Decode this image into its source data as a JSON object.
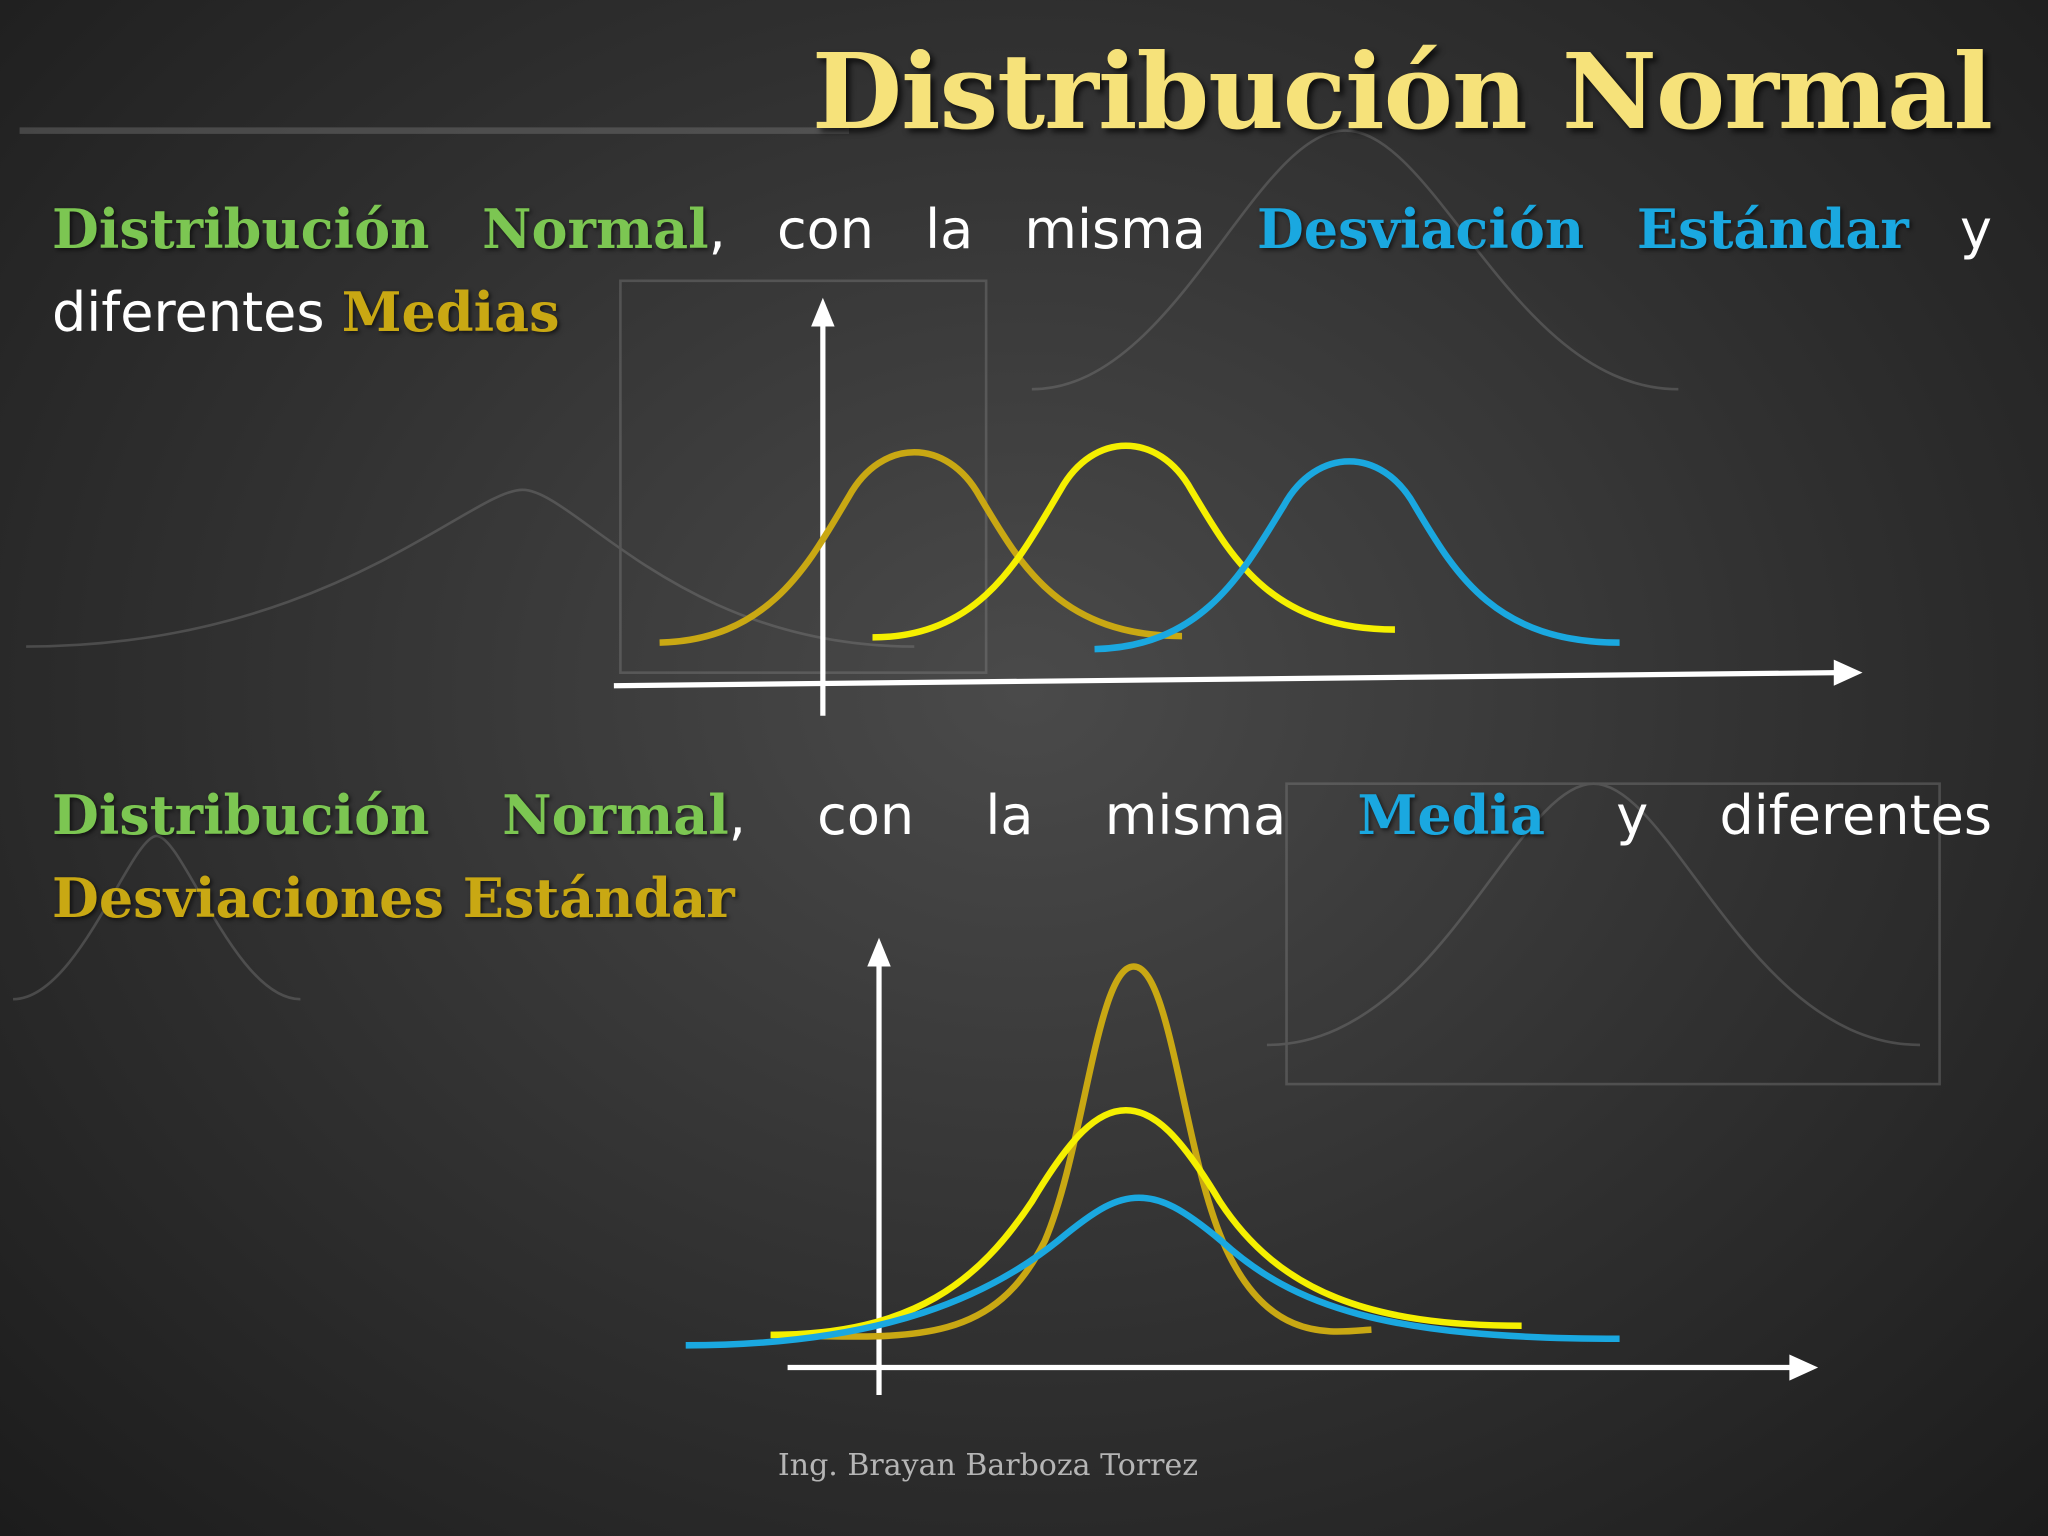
{
  "header": {
    "title": "Distribución Normal"
  },
  "sections": [
    {
      "parts": [
        "Distribución Normal",
        ", con la misma",
        "Desviación Estándar",
        "y diferentes",
        "Medias"
      ]
    },
    {
      "parts": [
        "Distribución Normal",
        ", con la misma",
        "Media",
        "y diferentes",
        "Desviaciones Estándar"
      ]
    }
  ],
  "footer": {
    "author": "Ing. Brayan Barboza Torrez"
  }
}
